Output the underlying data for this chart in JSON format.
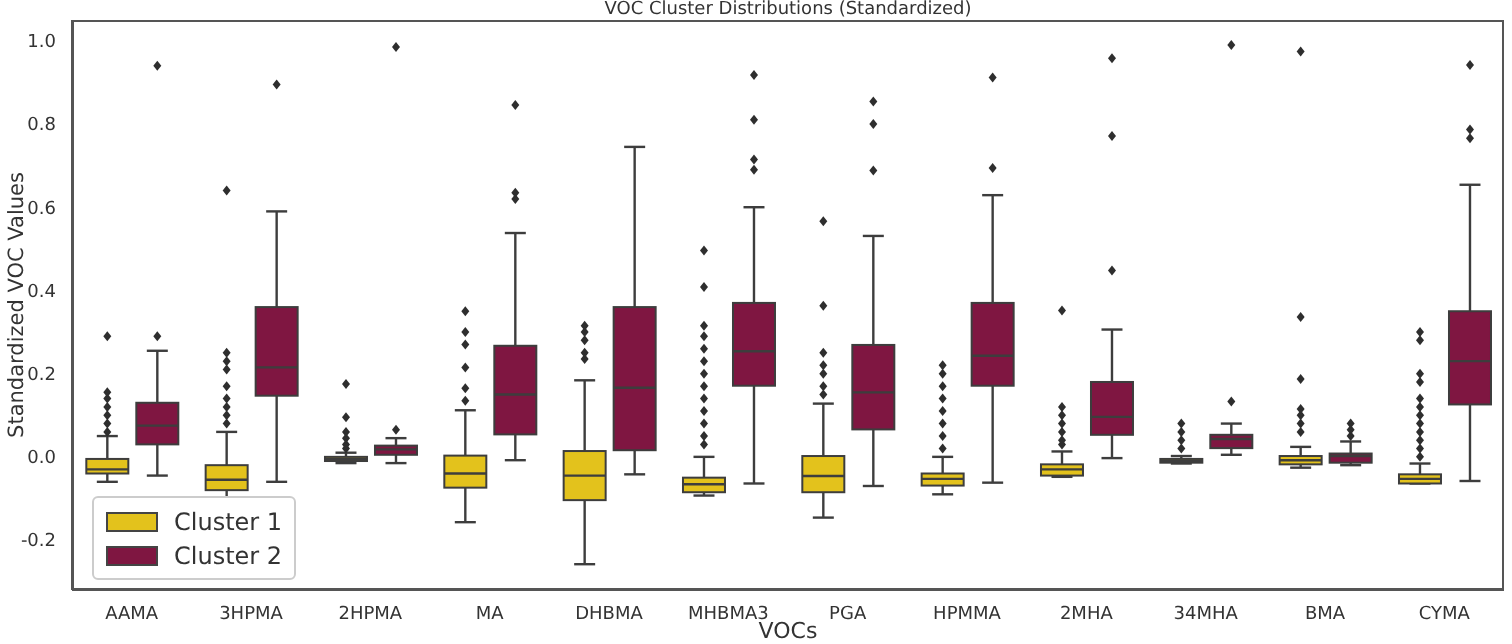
{
  "chart_data": {
    "type": "box",
    "title": "VOC Cluster Distributions (Standardized)",
    "xlabel": "VOCs",
    "ylabel": "Standardized VOC Values",
    "categories": [
      "AAMA",
      "3HPMA",
      "2HPMA",
      "MA",
      "DHBMA",
      "MHBMA3",
      "PGA",
      "HPMMA",
      "2MHA",
      "34MHA",
      "BMA",
      "CYMA"
    ],
    "ylim": [
      -0.32,
      1.05
    ],
    "yticks": [
      {
        "value": -0.2,
        "label": "-0.2"
      },
      {
        "value": 0,
        "label": "0.0"
      },
      {
        "value": 0.2,
        "label": "0.2"
      },
      {
        "value": 0.4,
        "label": "0.4"
      },
      {
        "value": 0.6,
        "label": "0.6"
      },
      {
        "value": 0.8,
        "label": "0.8"
      },
      {
        "value": 1,
        "label": "1.0"
      }
    ],
    "legend": "bottom left",
    "series": [
      {
        "name": "Cluster 1",
        "color": "#e3c21c",
        "boxes": [
          {
            "low": -0.06,
            "q1": -0.04,
            "median": -0.03,
            "q3": -0.005,
            "high": 0.05,
            "outliers": [
              0.06,
              0.08,
              0.1,
              0.12,
              0.14,
              0.155,
              0.29
            ]
          },
          {
            "low": -0.105,
            "q1": -0.08,
            "median": -0.055,
            "q3": -0.02,
            "high": 0.06,
            "outliers": [
              0.08,
              0.1,
              0.12,
              0.14,
              0.17,
              0.21,
              0.23,
              0.25,
              0.64
            ]
          },
          {
            "low": -0.015,
            "q1": -0.01,
            "median": -0.005,
            "q3": 0.0,
            "high": 0.01,
            "outliers": [
              0.02,
              0.03,
              0.045,
              0.06,
              0.095,
              0.175
            ]
          },
          {
            "low": -0.157,
            "q1": -0.074,
            "median": -0.04,
            "q3": 0.003,
            "high": 0.112,
            "outliers": [
              0.135,
              0.165,
              0.215,
              0.27,
              0.3,
              0.35
            ]
          },
          {
            "low": -0.258,
            "q1": -0.104,
            "median": -0.045,
            "q3": 0.014,
            "high": 0.184,
            "outliers": [
              0.235,
              0.25,
              0.28,
              0.3,
              0.315
            ]
          },
          {
            "low": -0.093,
            "q1": -0.085,
            "median": -0.066,
            "q3": -0.05,
            "high": 0.0,
            "outliers": [
              0.03,
              0.05,
              0.08,
              0.11,
              0.14,
              0.17,
              0.2,
              0.23,
              0.26,
              0.29,
              0.315,
              0.408,
              0.496
            ]
          },
          {
            "low": -0.146,
            "q1": -0.085,
            "median": -0.046,
            "q3": 0.002,
            "high": 0.128,
            "outliers": [
              0.15,
              0.17,
              0.2,
              0.22,
              0.25,
              0.363,
              0.566
            ]
          },
          {
            "low": -0.09,
            "q1": -0.069,
            "median": -0.053,
            "q3": -0.04,
            "high": 0.0,
            "outliers": [
              0.02,
              0.05,
              0.08,
              0.11,
              0.14,
              0.17,
              0.2,
              0.22
            ]
          },
          {
            "low": -0.048,
            "q1": -0.045,
            "median": -0.03,
            "q3": -0.018,
            "high": 0.013,
            "outliers": [
              0.03,
              0.04,
              0.06,
              0.08,
              0.1,
              0.12,
              0.352
            ]
          },
          {
            "low": -0.016,
            "q1": -0.014,
            "median": -0.01,
            "q3": -0.005,
            "high": 0.002,
            "outliers": [
              0.02,
              0.04,
              0.06,
              0.08
            ]
          },
          {
            "low": -0.026,
            "q1": -0.018,
            "median": -0.008,
            "q3": 0.002,
            "high": 0.024,
            "outliers": [
              0.06,
              0.08,
              0.1,
              0.115,
              0.187,
              0.336,
              0.974
            ]
          },
          {
            "low": -0.064,
            "q1": -0.064,
            "median": -0.053,
            "q3": -0.042,
            "high": -0.016,
            "outliers": [
              0.0,
              0.02,
              0.04,
              0.06,
              0.08,
              0.1,
              0.12,
              0.14,
              0.18,
              0.2,
              0.28,
              0.3
            ]
          }
        ]
      },
      {
        "name": "Cluster 2",
        "color": "#7f1641",
        "boxes": [
          {
            "low": -0.045,
            "q1": 0.03,
            "median": 0.075,
            "q3": 0.13,
            "high": 0.255,
            "outliers": [
              0.29,
              0.94
            ]
          },
          {
            "low": -0.06,
            "q1": 0.147,
            "median": 0.215,
            "q3": 0.36,
            "high": 0.59,
            "outliers": [
              0.895
            ]
          },
          {
            "low": -0.015,
            "q1": 0.005,
            "median": 0.018,
            "q3": 0.027,
            "high": 0.045,
            "outliers": [
              0.065,
              0.985
            ]
          },
          {
            "low": -0.008,
            "q1": 0.054,
            "median": 0.15,
            "q3": 0.267,
            "high": 0.538,
            "outliers": [
              0.62,
              0.635,
              0.846
            ]
          },
          {
            "low": -0.042,
            "q1": 0.016,
            "median": 0.166,
            "q3": 0.36,
            "high": 0.745
          },
          {
            "low": -0.064,
            "q1": 0.171,
            "median": 0.254,
            "q3": 0.37,
            "high": 0.6,
            "outliers": [
              0.69,
              0.715,
              0.81,
              0.918
            ]
          },
          {
            "low": -0.07,
            "q1": 0.066,
            "median": 0.155,
            "q3": 0.269,
            "high": 0.531,
            "outliers": [
              0.688,
              0.8,
              0.854
            ]
          },
          {
            "low": -0.062,
            "q1": 0.171,
            "median": 0.243,
            "q3": 0.37,
            "high": 0.629,
            "outliers": [
              0.694,
              0.912
            ]
          },
          {
            "low": -0.003,
            "q1": 0.053,
            "median": 0.096,
            "q3": 0.18,
            "high": 0.306,
            "outliers": [
              0.448,
              0.771,
              0.958
            ]
          },
          {
            "low": 0.005,
            "q1": 0.021,
            "median": 0.043,
            "q3": 0.053,
            "high": 0.08,
            "outliers": [
              0.133,
              0.99
            ]
          },
          {
            "low": -0.02,
            "q1": -0.014,
            "median": 0.002,
            "q3": 0.008,
            "high": 0.037,
            "outliers": [
              0.05,
              0.065,
              0.08
            ]
          },
          {
            "low": -0.058,
            "q1": 0.126,
            "median": 0.23,
            "q3": 0.35,
            "high": 0.654,
            "outliers": [
              0.766,
              0.787,
              0.942
            ]
          }
        ]
      }
    ]
  }
}
